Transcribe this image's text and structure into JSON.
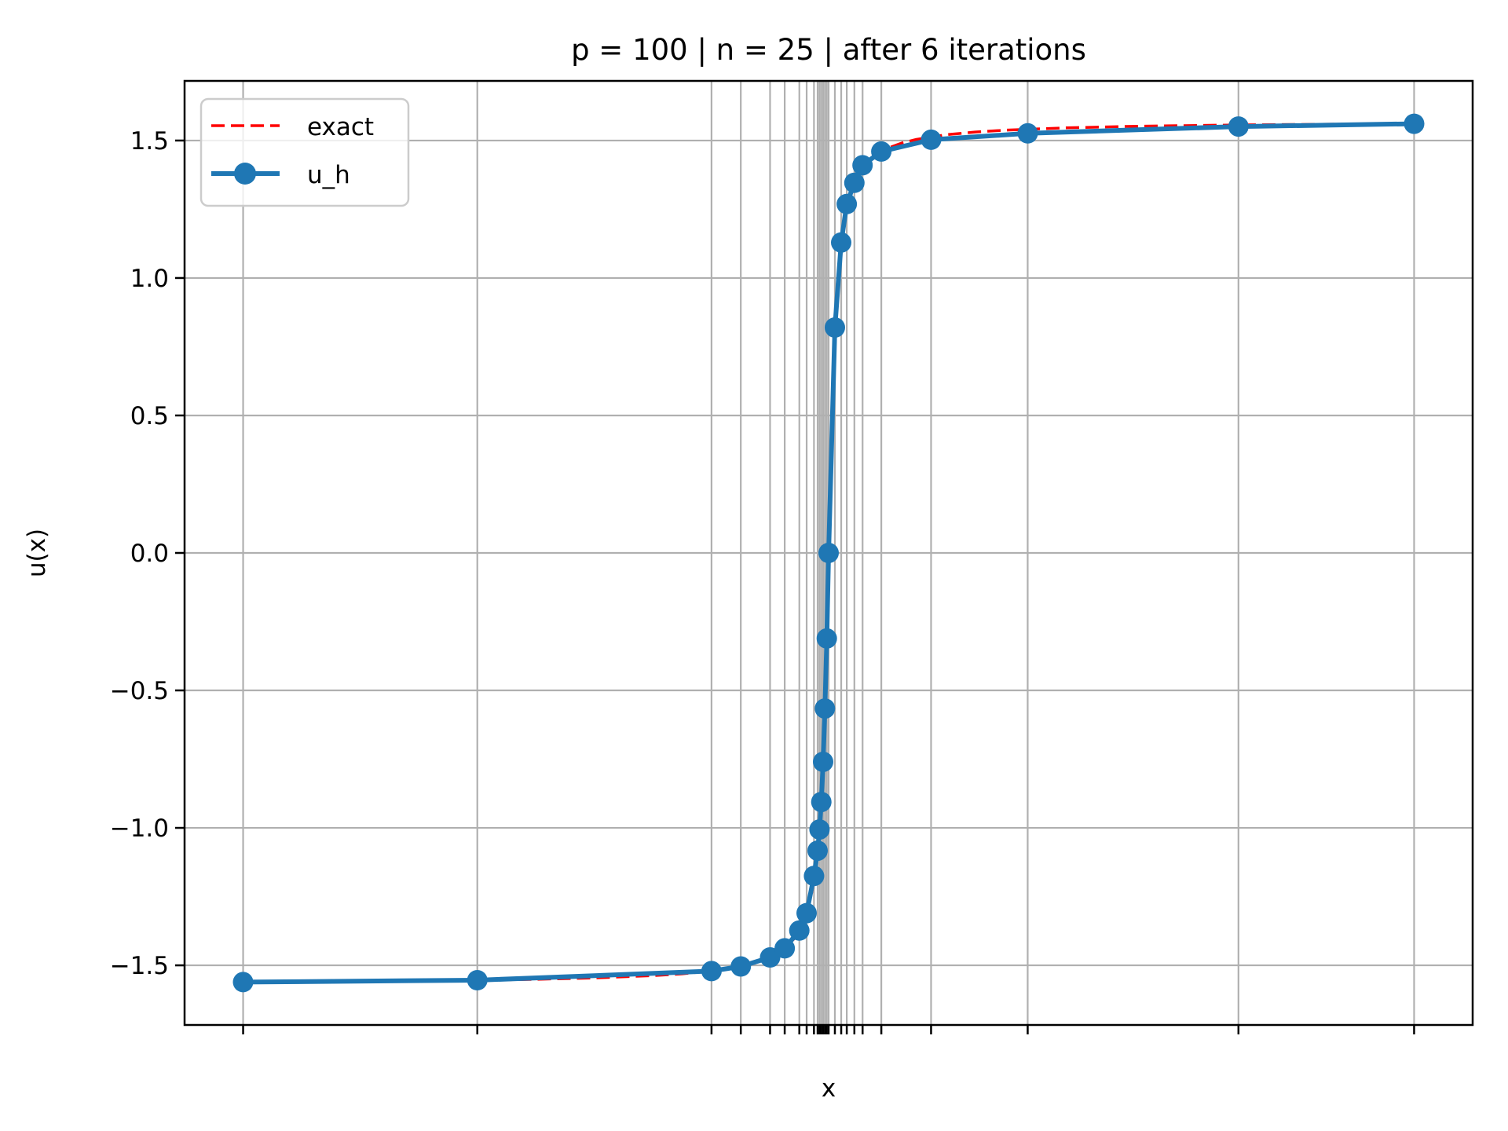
{
  "figure": {
    "background": "#ffffff",
    "spine_color": "#000000"
  },
  "chart_data": {
    "type": "line",
    "title": "p = 100 | n = 25 | after 6 iterations",
    "xlabel": "x",
    "ylabel": "u(x)",
    "xlim": [
      -1.1,
      1.1
    ],
    "ylim": [
      -1.7169,
      1.7169
    ],
    "grid": true,
    "grid_color": "#b0b0b0",
    "legend": {
      "position": "upper left",
      "entries": [
        "exact",
        "u_h"
      ]
    },
    "y_ticks": {
      "values": [
        1.5,
        1.0,
        0.5,
        0.0,
        -0.5,
        -1.0,
        -1.5
      ],
      "labels": [
        "1.5",
        "1.0",
        "0.5",
        "0.0",
        "−0.5",
        "−1.0",
        "−1.5"
      ]
    },
    "x_ticks": {
      "values": [
        -1,
        -0.6,
        -0.2,
        -0.15,
        -0.1,
        -0.075,
        -0.05,
        -0.0375,
        -0.025,
        -0.01875,
        -0.015625,
        -0.0125,
        -0.009375,
        -0.00625,
        -0.003125,
        0,
        0.0107,
        0.0215,
        0.031,
        0.044,
        0.058,
        0.09,
        0.175,
        0.34,
        0.7,
        1
      ],
      "labels": []
    },
    "series": [
      {
        "name": "exact",
        "style": "dashed",
        "color": "#ff0000",
        "linewidth": 3.5,
        "x": [
          -1,
          -0.9,
          -0.8,
          -0.7,
          -0.6,
          -0.5,
          -0.4,
          -0.3,
          -0.25,
          -0.2,
          -0.15,
          -0.125,
          -0.1,
          -0.08,
          -0.06,
          -0.05,
          -0.04,
          -0.03,
          -0.025,
          -0.02,
          -0.015,
          -0.0125,
          -0.01,
          -0.0075,
          -0.005,
          -0.00375,
          -0.0025,
          -0.00125,
          0,
          0.00125,
          0.0025,
          0.00375,
          0.005,
          0.0075,
          0.01,
          0.0125,
          0.015,
          0.02,
          0.025,
          0.03,
          0.04,
          0.05,
          0.06,
          0.08,
          0.1,
          0.125,
          0.15,
          0.2,
          0.25,
          0.3,
          0.4,
          0.5,
          0.6,
          0.7,
          0.8,
          0.9,
          1
        ],
        "y": [
          -1.5608,
          -1.5597,
          -1.5583,
          -1.5565,
          -1.5541,
          -1.5508,
          -1.5458,
          -1.5375,
          -1.5308,
          -1.5208,
          -1.5042,
          -1.4909,
          -1.4711,
          -1.4464,
          -1.4056,
          -1.3734,
          -1.3258,
          -1.249,
          -1.1903,
          -1.1071,
          -0.9828,
          -0.8961,
          -0.7854,
          -0.6435,
          -0.4636,
          -0.3588,
          -0.245,
          -0.1244,
          0,
          0.1244,
          0.245,
          0.3588,
          0.4636,
          0.6435,
          0.7854,
          0.8961,
          0.9828,
          1.1071,
          1.1903,
          1.249,
          1.3258,
          1.3734,
          1.4056,
          1.4464,
          1.4711,
          1.4909,
          1.5042,
          1.5208,
          1.5308,
          1.5375,
          1.5458,
          1.5508,
          1.5541,
          1.5565,
          1.5583,
          1.5597,
          1.5608
        ]
      },
      {
        "name": "u_h",
        "style": "solid-markers",
        "color": "#1f77b4",
        "linewidth": 6,
        "markersize": 13,
        "x": [
          -1,
          -0.6,
          -0.2,
          -0.15,
          -0.1,
          -0.075,
          -0.05,
          -0.0375,
          -0.025,
          -0.01875,
          -0.015625,
          -0.0125,
          -0.009375,
          -0.00625,
          -0.003125,
          0,
          0.0107,
          0.0215,
          0.031,
          0.044,
          0.058,
          0.09,
          0.175,
          0.34,
          0.7,
          1
        ],
        "y": [
          -1.5608,
          -1.5541,
          -1.5208,
          -1.5042,
          -1.4711,
          -1.4382,
          -1.3734,
          -1.3102,
          -1.175,
          -1.083,
          -1.006,
          -0.906,
          -0.76,
          -0.566,
          -0.311,
          0,
          0.82,
          1.129,
          1.269,
          1.346,
          1.41,
          1.46,
          1.503,
          1.526,
          1.551,
          1.5608
        ]
      }
    ]
  }
}
